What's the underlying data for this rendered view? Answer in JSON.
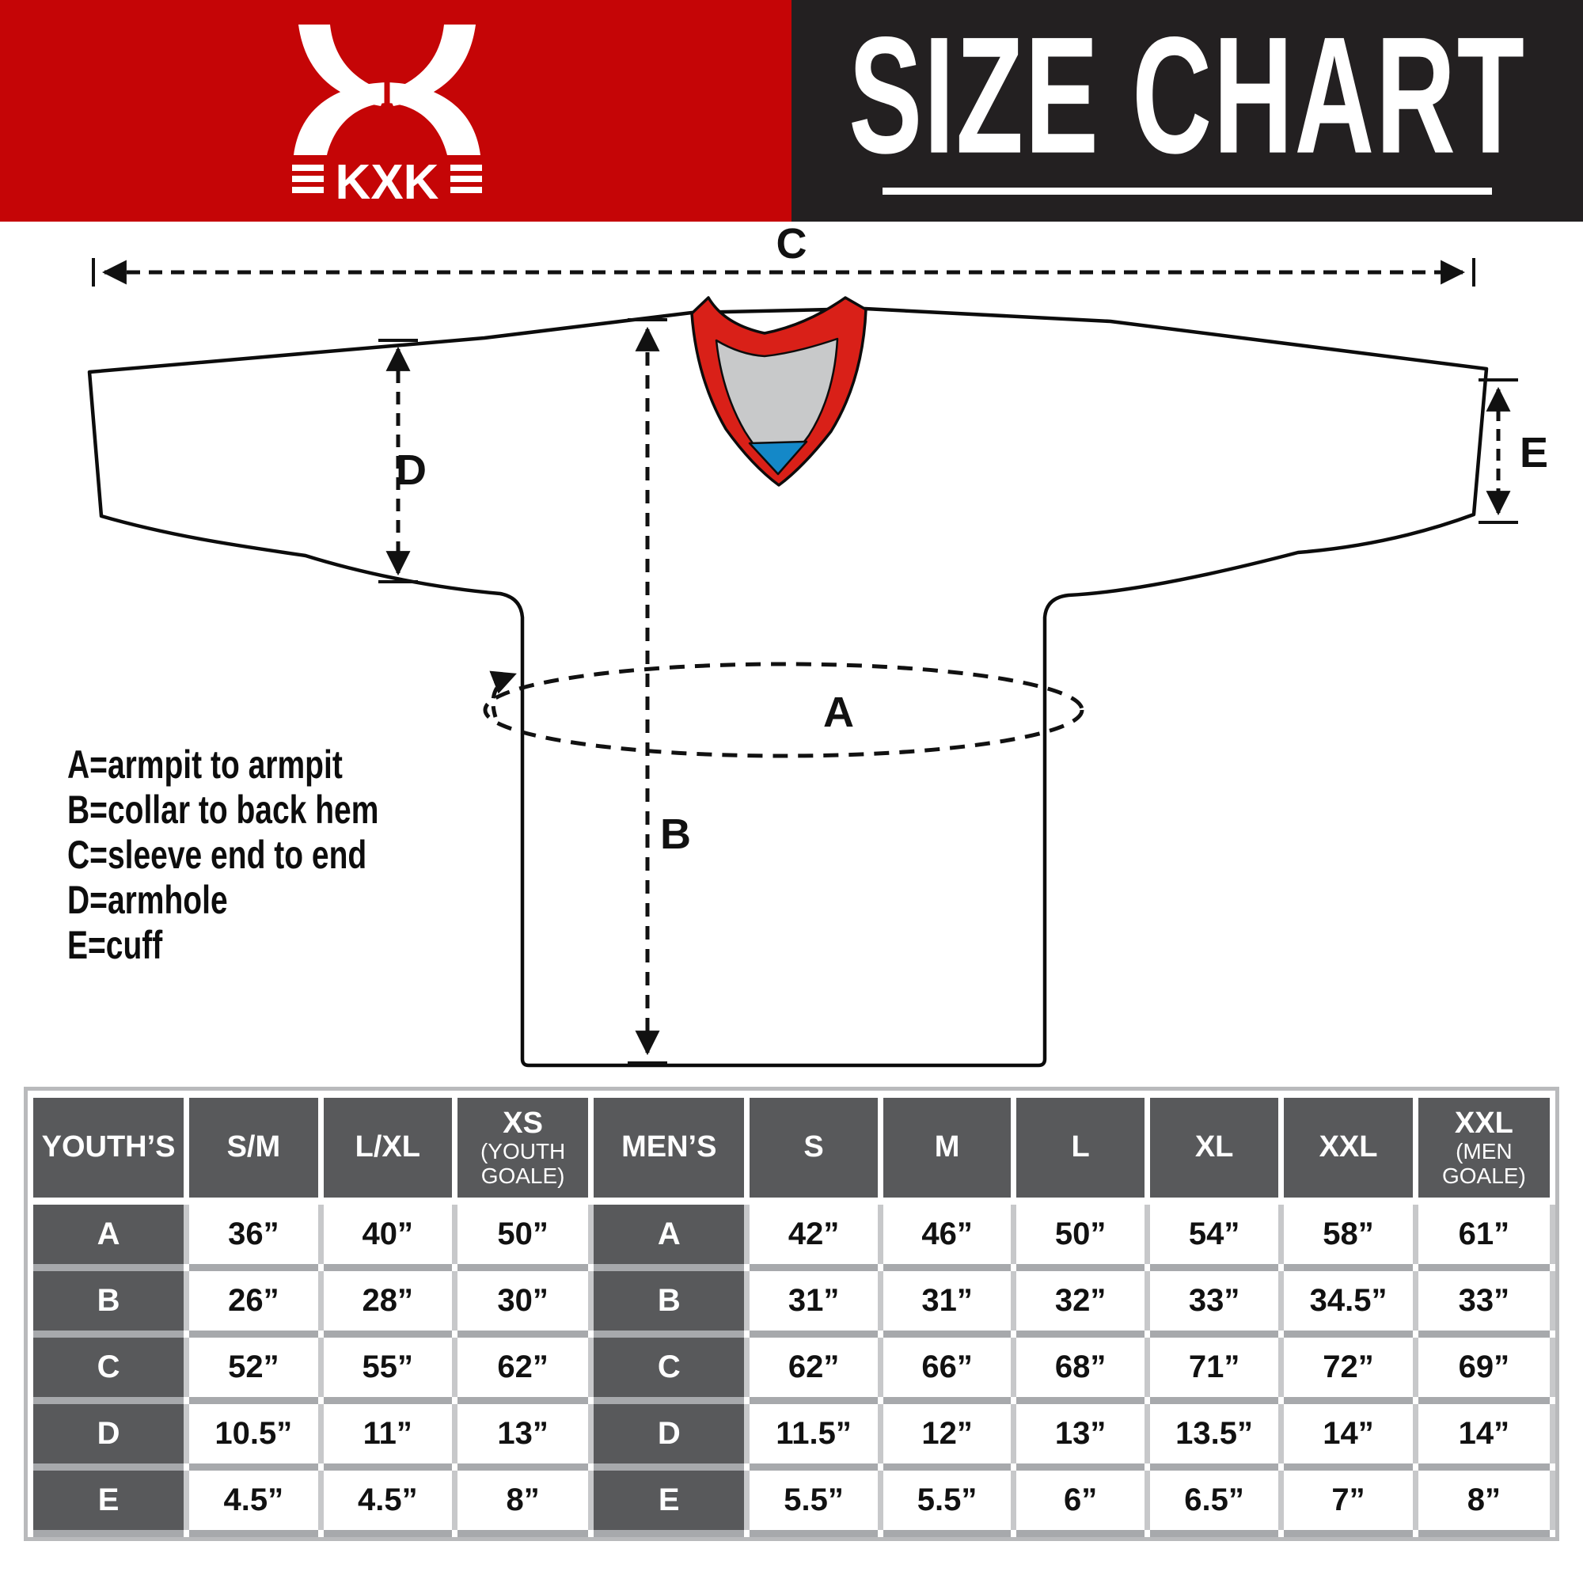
{
  "header": {
    "brand": "KXK",
    "title": "SIZE CHART",
    "colors": {
      "brand_bg": "#c50506",
      "title_bg": "#232021",
      "collar_red": "#d92018",
      "collar_gray": "#c8c9ca",
      "collar_blue": "#1488c8",
      "table_header_bg": "#58595b",
      "row_divider": "#a7a9ac"
    }
  },
  "diagram": {
    "labels": {
      "A": "A",
      "B": "B",
      "C": "C",
      "D": "D",
      "E": "E"
    },
    "legend": [
      "A=armpit to armpit",
      "B=collar to back hem",
      "C=sleeve end to end",
      "D=armhole",
      "E=cuff"
    ]
  },
  "chart_data": {
    "type": "table",
    "title": "SIZE CHART",
    "measurement_key": {
      "A": "armpit to armpit",
      "B": "collar to back hem",
      "C": "sleeve end to end",
      "D": "armhole",
      "E": "cuff"
    },
    "sections": [
      {
        "group": "YOUTH’S",
        "columns": [
          {
            "label": "S/M"
          },
          {
            "label": "L/XL"
          },
          {
            "label": "XS",
            "sub": "(YOUTH GOALE)"
          }
        ],
        "rows": [
          {
            "label": "A",
            "values": [
              "36”",
              "40”",
              "50”"
            ]
          },
          {
            "label": "B",
            "values": [
              "26”",
              "28”",
              "30”"
            ]
          },
          {
            "label": "C",
            "values": [
              "52”",
              "55”",
              "62”"
            ]
          },
          {
            "label": "D",
            "values": [
              "10.5”",
              "11”",
              "13”"
            ]
          },
          {
            "label": "E",
            "values": [
              "4.5”",
              "4.5”",
              "8”"
            ]
          }
        ]
      },
      {
        "group": "MEN’S",
        "columns": [
          {
            "label": "S"
          },
          {
            "label": "M"
          },
          {
            "label": "L"
          },
          {
            "label": "XL"
          },
          {
            "label": "XXL"
          },
          {
            "label": "XXL",
            "sub": "(MEN GOALE)"
          }
        ],
        "rows": [
          {
            "label": "A",
            "values": [
              "42”",
              "46”",
              "50”",
              "54”",
              "58”",
              "61”"
            ]
          },
          {
            "label": "B",
            "values": [
              "31”",
              "31”",
              "32”",
              "33”",
              "34.5”",
              "33”"
            ]
          },
          {
            "label": "C",
            "values": [
              "62”",
              "66”",
              "68”",
              "71”",
              "72”",
              "69”"
            ]
          },
          {
            "label": "D",
            "values": [
              "11.5”",
              "12”",
              "13”",
              "13.5”",
              "14”",
              "14”"
            ]
          },
          {
            "label": "E",
            "values": [
              "5.5”",
              "5.5”",
              "6”",
              "6.5”",
              "7”",
              "8”"
            ]
          }
        ]
      }
    ]
  }
}
